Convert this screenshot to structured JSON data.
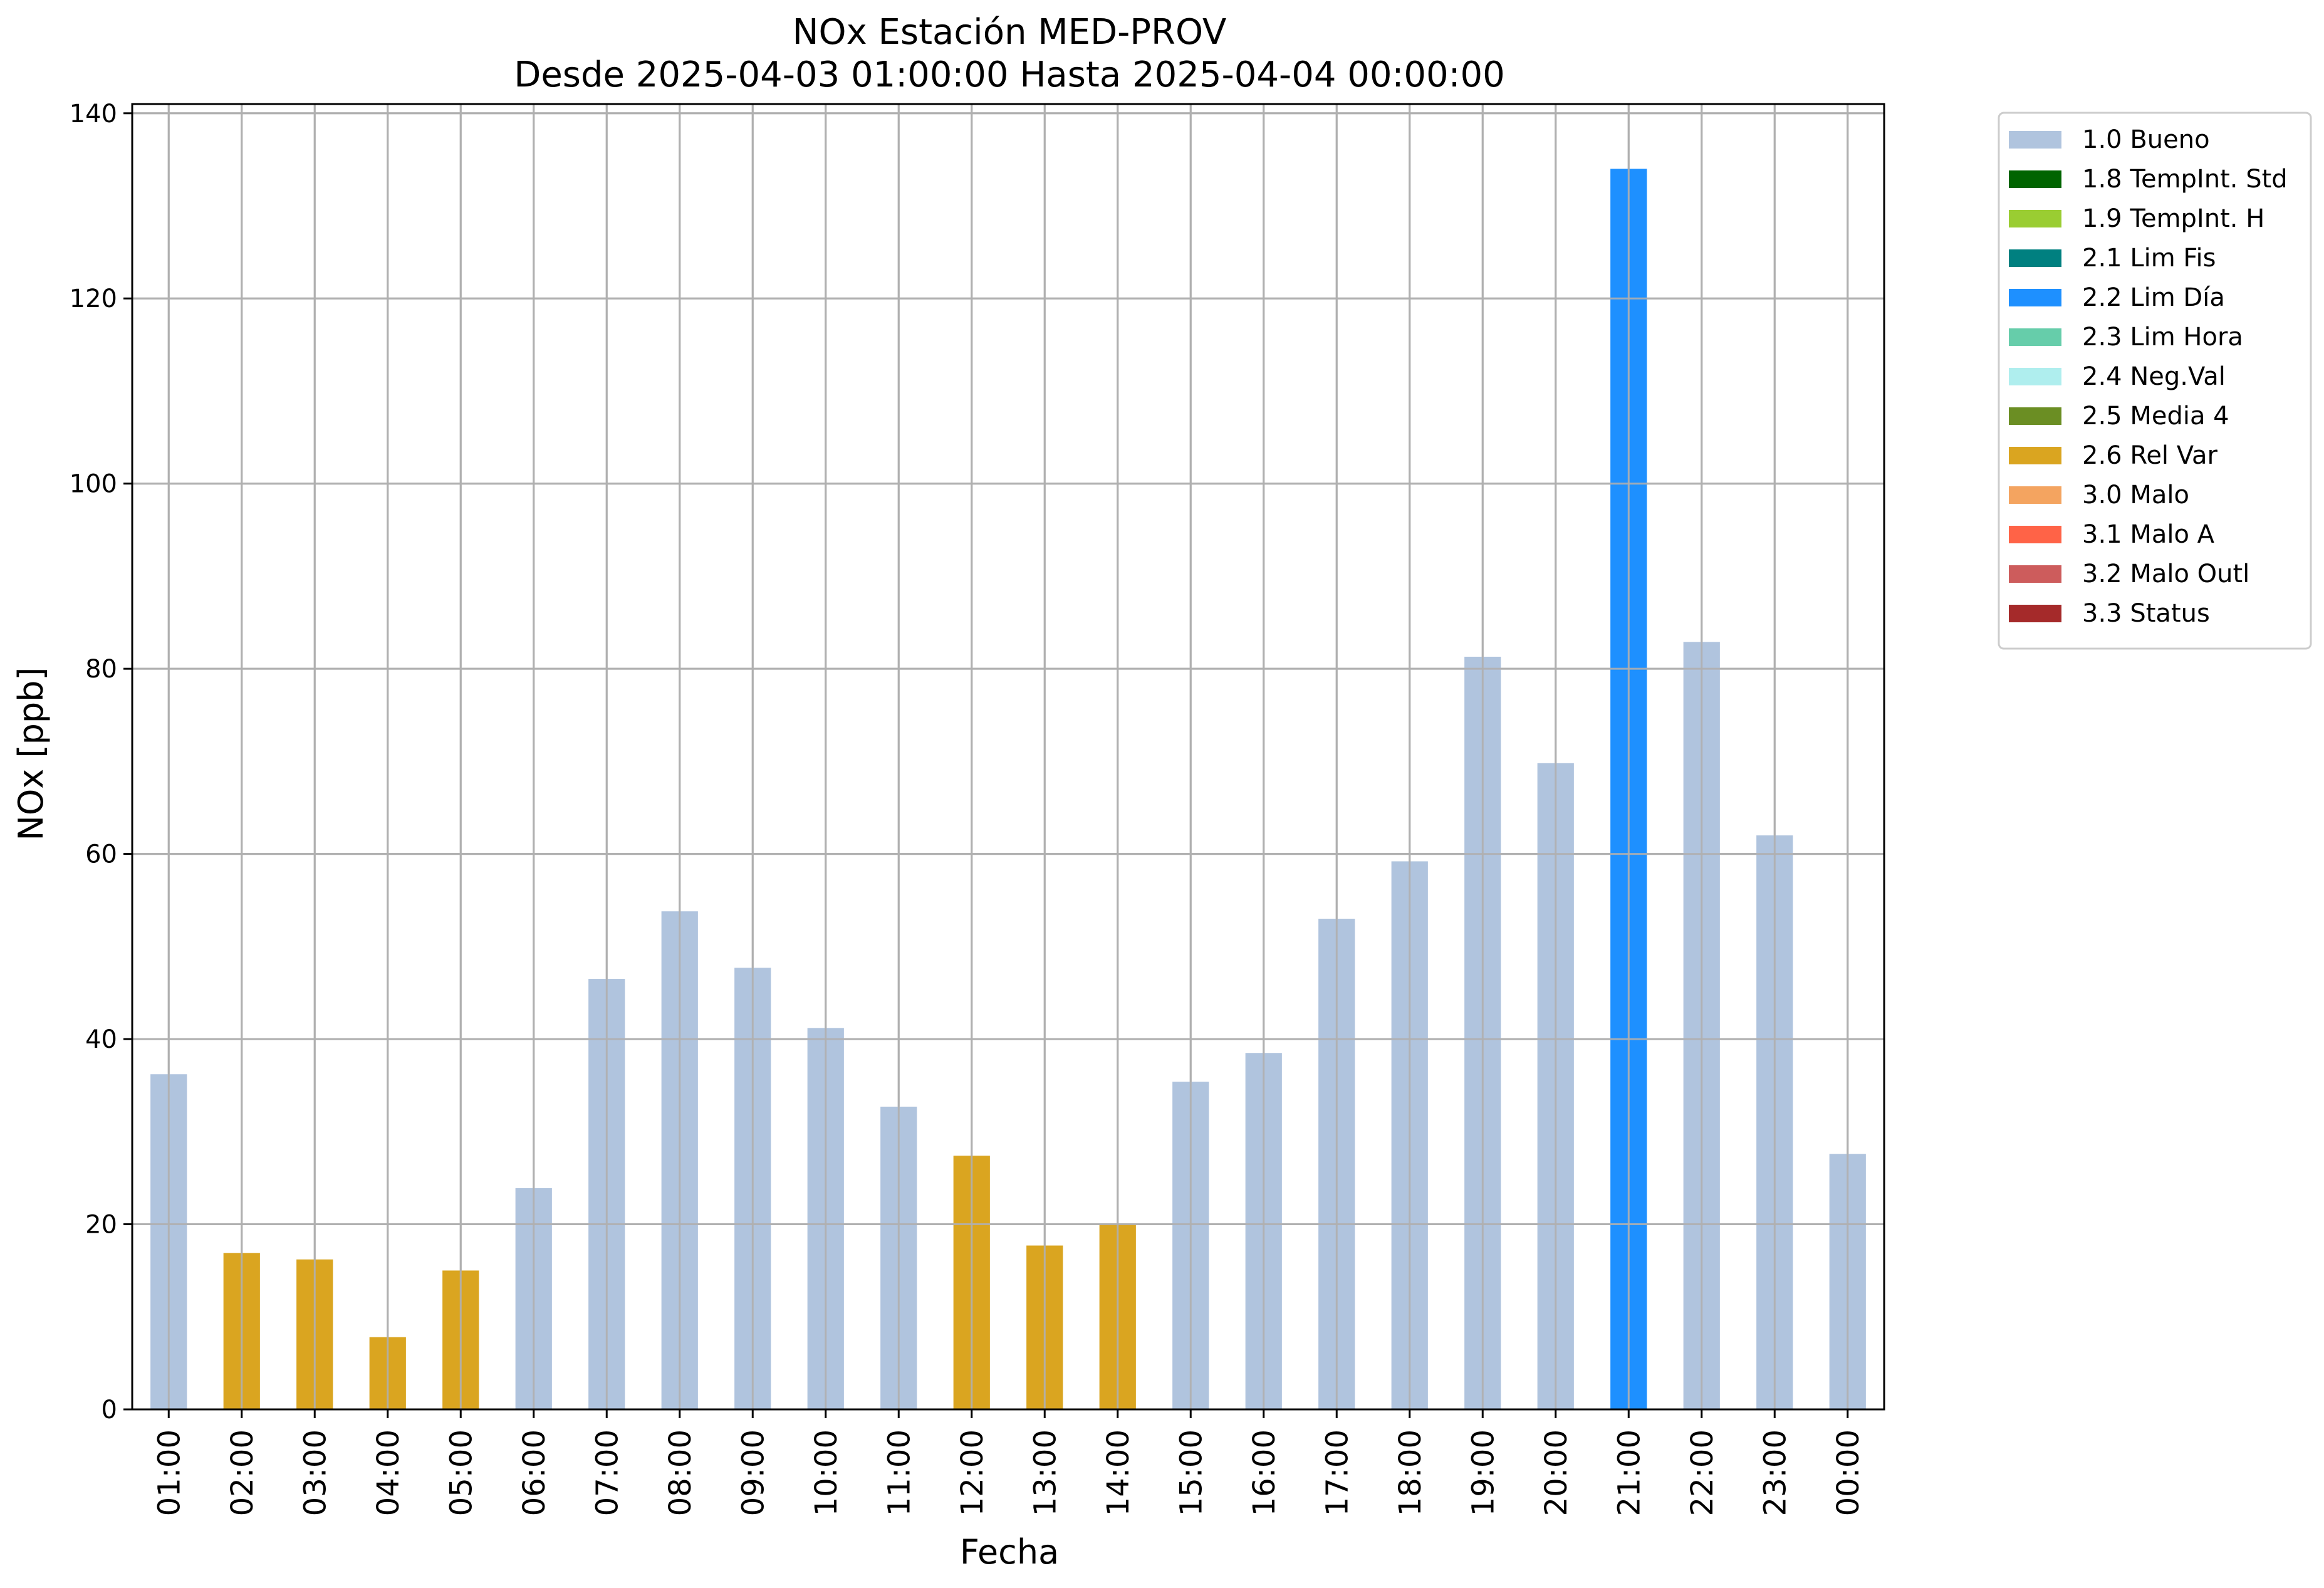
{
  "chart_data": {
    "type": "bar",
    "title": "NOx Estación MED-PROV",
    "subtitle": "Desde 2025-04-03 01:00:00 Hasta 2025-04-04 00:00:00",
    "xlabel": "Fecha",
    "ylabel": "NOx [ppb]",
    "ylim": [
      0,
      141
    ],
    "yticks": [
      0,
      20,
      40,
      60,
      80,
      100,
      120,
      140
    ],
    "grid": true,
    "legend_position": "outside-top-right",
    "categories": [
      "01:00",
      "02:00",
      "03:00",
      "04:00",
      "05:00",
      "06:00",
      "07:00",
      "08:00",
      "09:00",
      "10:00",
      "11:00",
      "12:00",
      "13:00",
      "14:00",
      "15:00",
      "16:00",
      "17:00",
      "18:00",
      "19:00",
      "20:00",
      "21:00",
      "22:00",
      "23:00",
      "00:00"
    ],
    "values": [
      36.2,
      16.9,
      16.2,
      7.8,
      15.0,
      23.9,
      46.5,
      53.8,
      47.7,
      41.2,
      32.7,
      27.4,
      17.7,
      20.0,
      35.4,
      38.5,
      53.0,
      59.2,
      81.3,
      69.8,
      134.0,
      82.9,
      62.0,
      27.6
    ],
    "bar_flags": [
      "1.0 Bueno",
      "2.6 Rel Var",
      "2.6 Rel Var",
      "2.6 Rel Var",
      "2.6 Rel Var",
      "1.0 Bueno",
      "1.0 Bueno",
      "1.0 Bueno",
      "1.0 Bueno",
      "1.0 Bueno",
      "1.0 Bueno",
      "2.6 Rel Var",
      "2.6 Rel Var",
      "2.6 Rel Var",
      "1.0 Bueno",
      "1.0 Bueno",
      "1.0 Bueno",
      "1.0 Bueno",
      "1.0 Bueno",
      "1.0 Bueno",
      "2.2 Lim Día",
      "1.0 Bueno",
      "1.0 Bueno",
      "1.0 Bueno"
    ],
    "legend": [
      {
        "label": "1.0 Bueno",
        "color": "#b0c4de"
      },
      {
        "label": "1.8 TempInt. Std",
        "color": "#006400"
      },
      {
        "label": "1.9 TempInt. H",
        "color": "#9acd32"
      },
      {
        "label": "2.1 Lim Fis",
        "color": "#008080"
      },
      {
        "label": "2.2 Lim Día",
        "color": "#1e90ff"
      },
      {
        "label": "2.3 Lim Hora",
        "color": "#66cdaa"
      },
      {
        "label": "2.4 Neg.Val",
        "color": "#afeeee"
      },
      {
        "label": "2.5 Media 4",
        "color": "#6b8e23"
      },
      {
        "label": "2.6 Rel Var",
        "color": "#daa520"
      },
      {
        "label": "3.0 Malo",
        "color": "#f4a460"
      },
      {
        "label": "3.1 Malo A",
        "color": "#ff6347"
      },
      {
        "label": "3.2 Malo Outl",
        "color": "#cd5c5c"
      },
      {
        "label": "3.3 Status",
        "color": "#a52a2a"
      }
    ]
  }
}
